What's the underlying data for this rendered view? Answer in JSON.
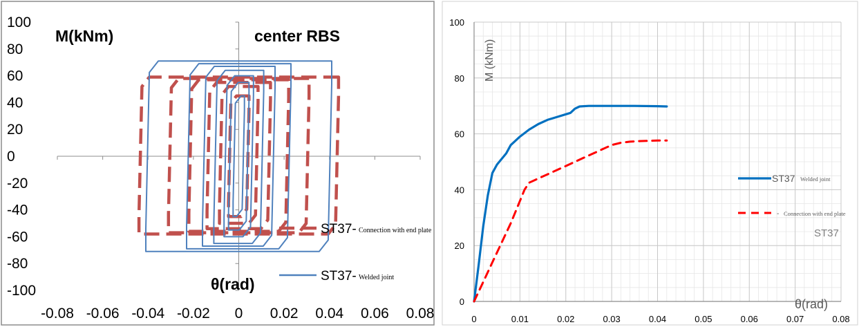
{
  "chart_data": [
    {
      "type": "line",
      "title": "center RBS",
      "xlabel": "θ(rad)",
      "ylabel": "M(kNm)",
      "xlim": [
        -0.08,
        0.08
      ],
      "ylim": [
        -100,
        100
      ],
      "x_ticks": [
        -0.08,
        -0.06,
        -0.04,
        -0.02,
        0,
        0.02,
        0.04,
        0.06,
        0.08
      ],
      "x_tick_labels": [
        "-0.08",
        "-0.06",
        "-0.04",
        "-0.02",
        "0",
        "0.02",
        "0.04",
        "0.06",
        "0.08"
      ],
      "y_ticks": [
        100,
        80,
        60,
        40,
        20,
        0,
        -20,
        -40,
        -60,
        -80,
        -100
      ],
      "y_tick_labels": [
        "100",
        "80",
        "60",
        "40",
        "20",
        "0",
        "-20",
        "-40",
        "-60",
        "-80",
        "-100"
      ],
      "grid": false,
      "legend_position": "right",
      "series": [
        {
          "name": "ST37-",
          "name_suffix": "Connection with end plate",
          "color": "#c0504d",
          "style": "dashed",
          "loops": [
            {
              "amp_x": 0.0045,
              "top": 45,
              "bot": -45
            },
            {
              "amp_x": 0.0085,
              "top": 52,
              "bot": -50
            },
            {
              "amp_x": 0.014,
              "top": 55,
              "bot": -54
            },
            {
              "amp_x": 0.022,
              "top": 57,
              "bot": -56
            },
            {
              "amp_x": 0.031,
              "top": 58,
              "bot": -57
            },
            {
              "amp_x": 0.044,
              "top": 59,
              "bot": -58
            }
          ]
        },
        {
          "name": "ST37-",
          "name_suffix": "Welded joint",
          "color": "#4f81bd",
          "style": "solid",
          "loops": [
            {
              "amp_x": 0.0025,
              "top": 45,
              "bot": -45
            },
            {
              "amp_x": 0.0045,
              "top": 55,
              "bot": -55
            },
            {
              "amp_x": 0.0065,
              "top": 60,
              "bot": -60
            },
            {
              "amp_x": 0.011,
              "top": 64,
              "bot": -65
            },
            {
              "amp_x": 0.016,
              "top": 67,
              "bot": -67
            },
            {
              "amp_x": 0.023,
              "top": 69,
              "bot": -69
            },
            {
              "amp_x": 0.041,
              "top": 71,
              "bot": -71
            }
          ]
        }
      ]
    },
    {
      "type": "line",
      "title": "",
      "xlabel": "θ(rad)",
      "ylabel": "M (kNm)",
      "annotation": "ST37",
      "xlim": [
        0,
        0.08
      ],
      "ylim": [
        0,
        100
      ],
      "x_ticks": [
        0,
        0.01,
        0.02,
        0.03,
        0.04,
        0.05,
        0.06,
        0.07,
        0.08
      ],
      "x_tick_labels": [
        "0",
        "0.01",
        "0.02",
        "0.03",
        "0.04",
        "0.05",
        "0.06",
        "0.07",
        "0.08"
      ],
      "y_ticks": [
        0,
        20,
        40,
        60,
        80,
        100
      ],
      "y_tick_labels": [
        "0",
        "20",
        "40",
        "60",
        "80",
        "100"
      ],
      "grid": true,
      "legend_position": "right",
      "series": [
        {
          "name": "ST37",
          "name_suffix": "Welded joint",
          "color": "#0070c0",
          "style": "solid",
          "x": [
            0,
            0.001,
            0.002,
            0.003,
            0.004,
            0.005,
            0.006,
            0.007,
            0.008,
            0.01,
            0.012,
            0.014,
            0.016,
            0.018,
            0.02,
            0.021,
            0.022,
            0.023,
            0.025,
            0.03,
            0.035,
            0.04,
            0.042
          ],
          "y": [
            0,
            13,
            27,
            38,
            46,
            49,
            51,
            53,
            56,
            59,
            61.5,
            63.5,
            65,
            66,
            67,
            67.5,
            69,
            69.8,
            70,
            70,
            70,
            69.9,
            69.8
          ]
        },
        {
          "name": "",
          "name_suffix": "Connection with end plate",
          "color": "#ff0000",
          "style": "dashed",
          "x": [
            0,
            0.002,
            0.004,
            0.006,
            0.008,
            0.01,
            0.011,
            0.012,
            0.014,
            0.016,
            0.018,
            0.02,
            0.022,
            0.024,
            0.026,
            0.028,
            0.03,
            0.032,
            0.034,
            0.036,
            0.038,
            0.04,
            0.042
          ],
          "y": [
            0,
            7,
            14,
            21,
            28,
            36,
            40,
            42.5,
            44,
            45.5,
            47,
            48.5,
            50,
            51.5,
            53,
            54.5,
            56,
            56.8,
            57.2,
            57.4,
            57.5,
            57.6,
            57.6
          ]
        }
      ]
    }
  ]
}
